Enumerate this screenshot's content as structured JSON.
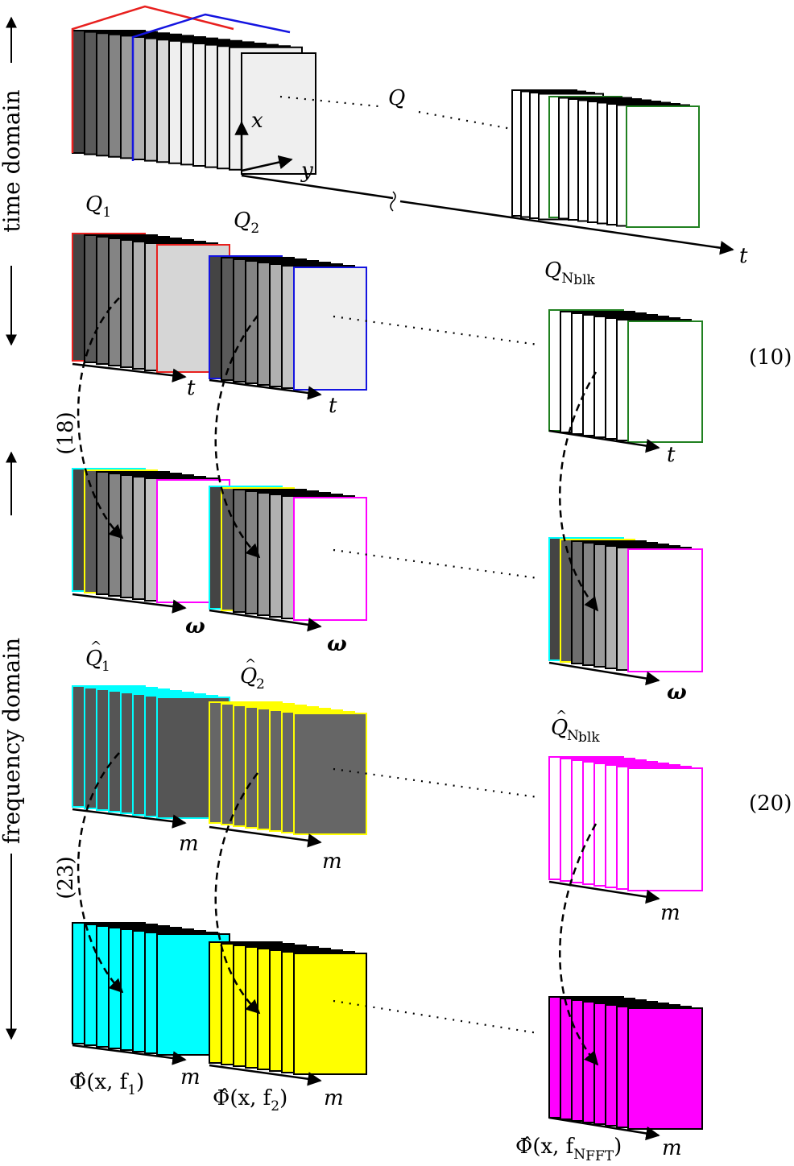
{
  "labels": {
    "time_domain": "time domain",
    "frequency_domain": "frequency domain",
    "Q": "Q",
    "x": "x",
    "y": "y",
    "t": "t",
    "omega": "ω",
    "m": "m",
    "Q1_base": "Q",
    "Q1_sub": "1",
    "Q2_base": "Q",
    "Q2_sub": "2",
    "QN_base": "Q",
    "QN_sub": "N",
    "QN_subsub": "blk",
    "Qhat1_sub": "1",
    "Qhat2_sub": "2",
    "QhatN_sub": "N",
    "QhatN_subsub": "blk",
    "phi1": "Φ̂(x, f",
    "phi1_sub": "1",
    "phi2": "Φ̂(x, f",
    "phi2_sub": "2",
    "phiN": "Φ̂(x, f",
    "phiN_sub": "N",
    "phiN_subsub": "FFT",
    "close_paren": ")"
  },
  "equations": {
    "eq10": "(10)",
    "eq18": "(18)",
    "eq20": "(20)",
    "eq23": "(23)"
  },
  "colors": {
    "red": "#e8201e",
    "blue": "#1414e0",
    "green": "#208020",
    "cyan": "#00ffff",
    "yellow": "#ffff00",
    "magenta": "#ff00ff",
    "dark_gray": "#555555",
    "light_gray": "#efefef"
  }
}
